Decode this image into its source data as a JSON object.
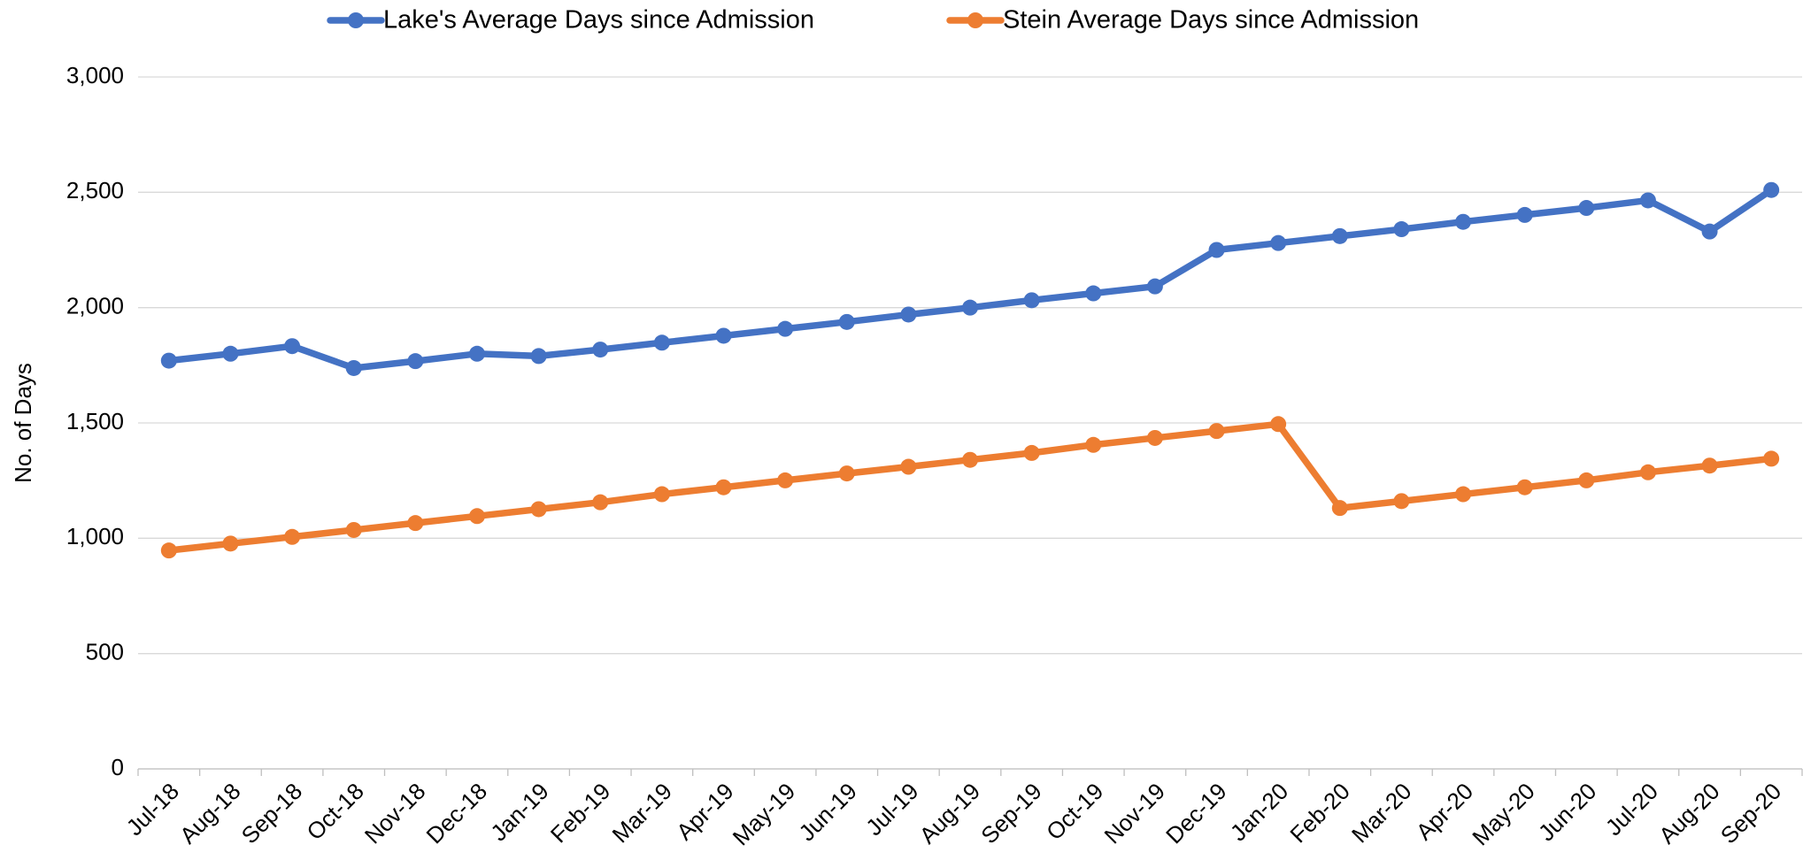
{
  "chart_data": {
    "type": "line",
    "y_label": "No. of Days",
    "categories": [
      "Jul-18",
      "Aug-18",
      "Sep-18",
      "Oct-18",
      "Nov-18",
      "Dec-18",
      "Jan-19",
      "Feb-19",
      "Mar-19",
      "Apr-19",
      "May-19",
      "Jun-19",
      "Jul-19",
      "Aug-19",
      "Sep-19",
      "Oct-19",
      "Nov-19",
      "Dec-19",
      "Jan-20",
      "Feb-20",
      "Mar-20",
      "Apr-20",
      "May-20",
      "Jun-20",
      "Jul-20",
      "Aug-20",
      "Sep-20"
    ],
    "series": [
      {
        "name": "Lake's Average Days since Admission",
        "color": "#4472c4",
        "values": [
          1770,
          1800,
          1833,
          1738,
          1768,
          1800,
          1790,
          1818,
          1848,
          1878,
          1908,
          1938,
          1970,
          2000,
          2032,
          2062,
          2092,
          2250,
          2280,
          2310,
          2340,
          2372,
          2402,
          2432,
          2465,
          2330,
          2510
        ]
      },
      {
        "name": "Stein Average Days since Admission",
        "color": "#ed7d31",
        "values": [
          947,
          977,
          1006,
          1036,
          1066,
          1096,
          1126,
          1156,
          1191,
          1221,
          1251,
          1281,
          1310,
          1340,
          1370,
          1405,
          1435,
          1465,
          1495,
          1131,
          1161,
          1191,
          1221,
          1251,
          1286,
          1315,
          1345
        ]
      }
    ],
    "ylim": [
      0,
      3000
    ],
    "yticks": [
      0,
      500,
      {
        "value": 1000,
        "label": "1,000"
      },
      {
        "value": 1500,
        "label": "1,500"
      },
      {
        "value": 2000,
        "label": "2,000"
      },
      {
        "value": 2500,
        "label": "2,500"
      },
      {
        "value": 3000,
        "label": "3,000"
      }
    ],
    "grid": true,
    "legend": "top"
  }
}
